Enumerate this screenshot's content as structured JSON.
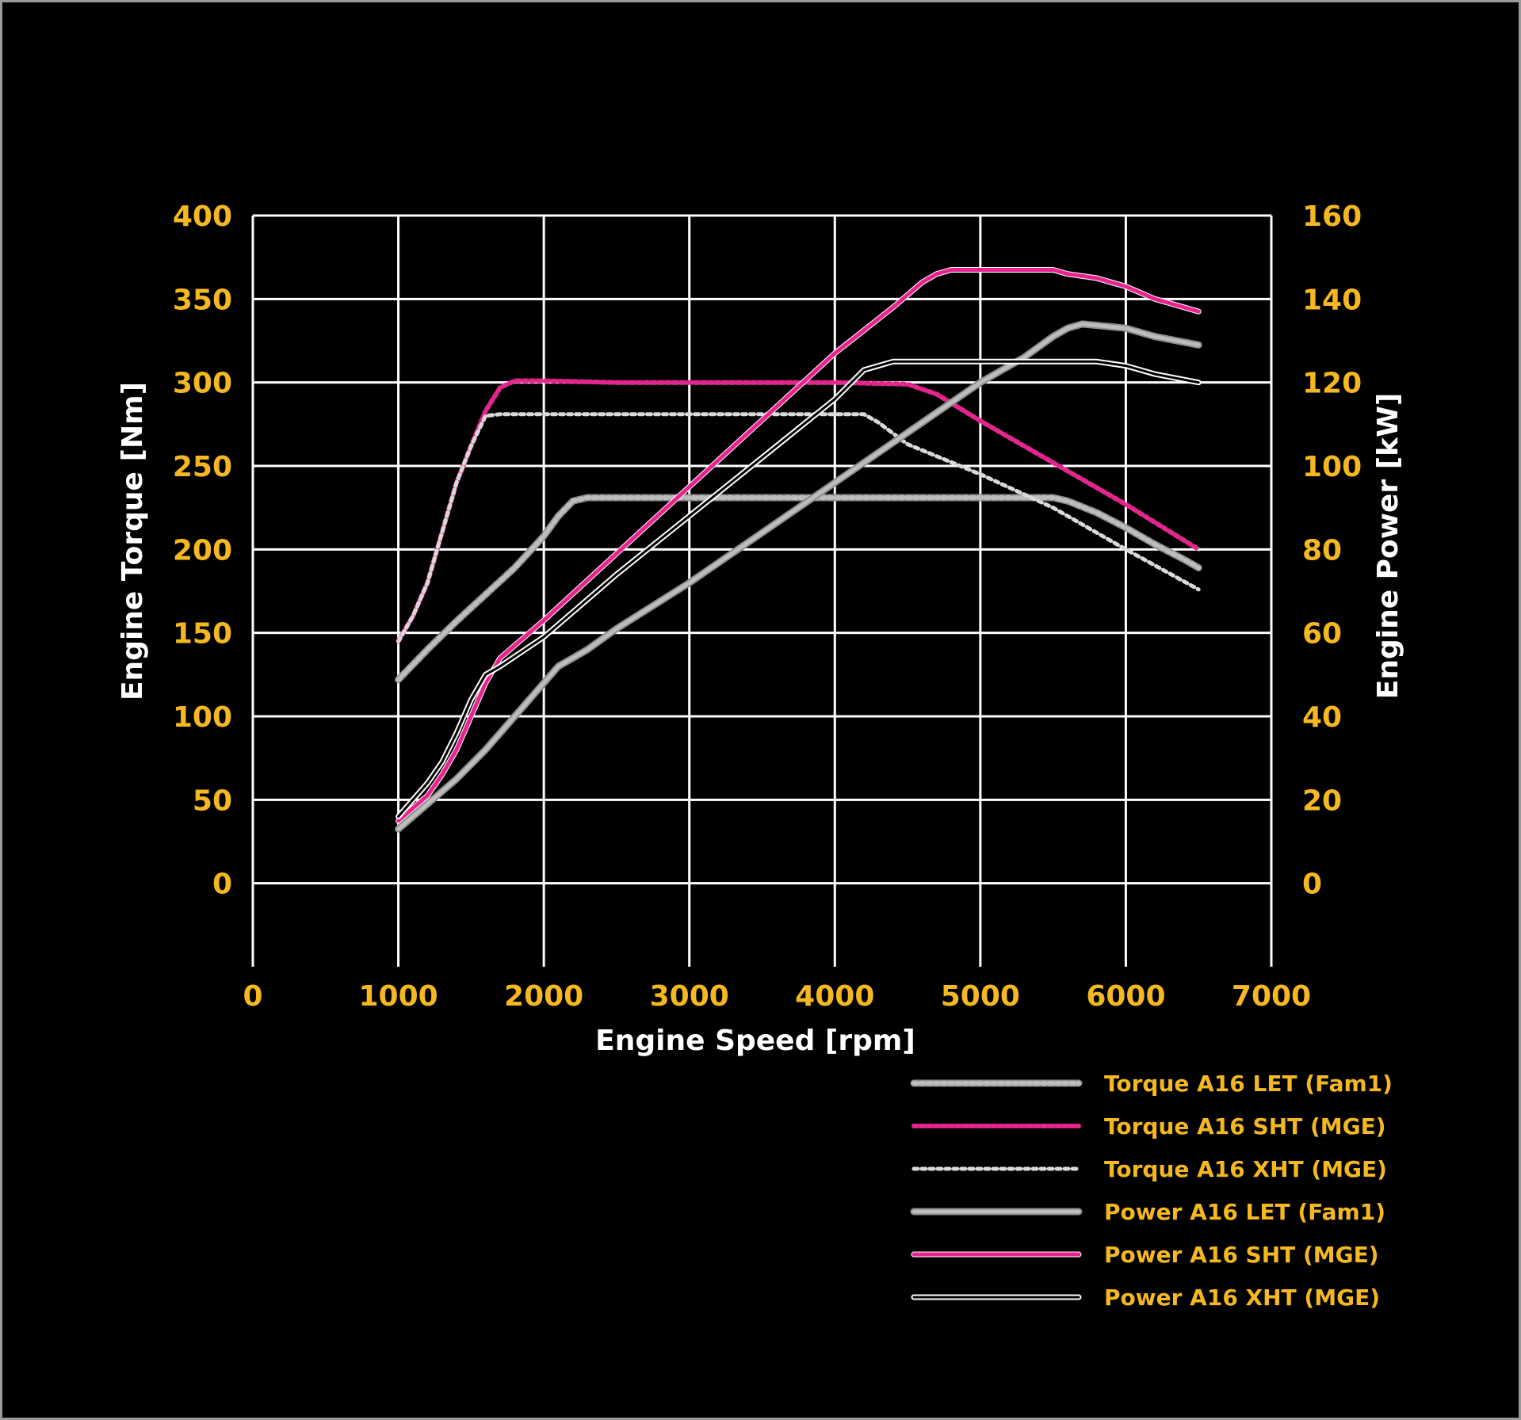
{
  "chart_data": {
    "type": "line",
    "title": "",
    "xlabel": "Engine Speed [rpm]",
    "ylabel_left": "Engine Torque [Nm]",
    "ylabel_right": "Engine Power [kW]",
    "xlim": [
      0,
      7000
    ],
    "ylim_left": [
      -50,
      400
    ],
    "ylim_right": [
      -20,
      160
    ],
    "x_ticks": [
      "0",
      "1000",
      "2000",
      "3000",
      "4000",
      "5000",
      "6000",
      "7000"
    ],
    "y_left_ticks": [
      "0",
      "50",
      "100",
      "150",
      "200",
      "250",
      "300",
      "350",
      "400"
    ],
    "y_right_ticks": [
      "0",
      "20",
      "40",
      "60",
      "80",
      "100",
      "120",
      "140",
      "160"
    ],
    "grid": true,
    "legend_position": "bottom-right",
    "series": [
      {
        "name": "Torque A16 LET (Fam1)",
        "axis": "left",
        "style": "dotted-thick",
        "color": "#bdbdbd",
        "x": [
          1000,
          1200,
          1400,
          1600,
          1800,
          2000,
          2100,
          2200,
          2300,
          2500,
          3000,
          3500,
          4000,
          4500,
          5000,
          5500,
          5600,
          5800,
          6000,
          6200,
          6400,
          6500
        ],
        "y": [
          122,
          140,
          157,
          173,
          189,
          208,
          220,
          229,
          231,
          231,
          231,
          231,
          231,
          231,
          231,
          231,
          229,
          222,
          213,
          203,
          194,
          189
        ]
      },
      {
        "name": "Torque A16 SHT (MGE)",
        "axis": "left",
        "style": "dotted",
        "color": "#e8238f",
        "x": [
          1000,
          1100,
          1200,
          1300,
          1400,
          1500,
          1600,
          1700,
          1800,
          2000,
          2500,
          3000,
          3500,
          4000,
          4500,
          4700,
          5000,
          5500,
          6000,
          6500
        ],
        "y": [
          145,
          160,
          180,
          210,
          240,
          262,
          283,
          297,
          301,
          301,
          300,
          300,
          300,
          300,
          299,
          293,
          277,
          252,
          227,
          200
        ]
      },
      {
        "name": "Torque A16 XHT (MGE)",
        "axis": "left",
        "style": "dotted-thin",
        "color": "#d9d9d9",
        "x": [
          1000,
          1100,
          1200,
          1300,
          1400,
          1500,
          1600,
          1700,
          2000,
          2500,
          3000,
          3500,
          4000,
          4200,
          4300,
          4500,
          5000,
          5500,
          6000,
          6500
        ],
        "y": [
          145,
          160,
          180,
          210,
          240,
          262,
          280,
          281,
          281,
          281,
          281,
          281,
          281,
          281,
          276,
          263,
          245,
          225,
          200,
          176
        ]
      },
      {
        "name": "Power A16 LET (Fam1)",
        "axis": "right",
        "style": "solid-thick",
        "color": "#bdbdbd",
        "x": [
          1000,
          1200,
          1400,
          1600,
          1800,
          2000,
          2100,
          2200,
          2300,
          2500,
          3000,
          3500,
          4000,
          4500,
          5000,
          5300,
          5500,
          5600,
          5700,
          6000,
          6200,
          6500
        ],
        "y": [
          13,
          19,
          25,
          32,
          40,
          48,
          52,
          54,
          56,
          61,
          72,
          84,
          96,
          108,
          120,
          126,
          131,
          133,
          134,
          133,
          131,
          129
        ]
      },
      {
        "name": "Power A16 SHT (MGE)",
        "axis": "right",
        "style": "solid",
        "color": "#e8238f",
        "x": [
          1000,
          1100,
          1200,
          1300,
          1400,
          1500,
          1600,
          1700,
          2000,
          2500,
          3000,
          3500,
          4000,
          4400,
          4600,
          4700,
          4800,
          5000,
          5500,
          5600,
          5800,
          6000,
          6200,
          6500
        ],
        "y": [
          15,
          18,
          21,
          26,
          32,
          40,
          48,
          54,
          63,
          79,
          95,
          111,
          127,
          138,
          144,
          146,
          147,
          147,
          147,
          146,
          145,
          143,
          140,
          137
        ]
      },
      {
        "name": "Power A16 XHT (MGE)",
        "axis": "right",
        "style": "solid-thin",
        "color": "#d9d9d9",
        "x": [
          1000,
          1100,
          1200,
          1300,
          1400,
          1500,
          1600,
          1700,
          2000,
          2500,
          3000,
          3500,
          4000,
          4200,
          4300,
          4400,
          4500,
          5000,
          5500,
          5800,
          6000,
          6200,
          6500
        ],
        "y": [
          16,
          20,
          24,
          29,
          36,
          44,
          50,
          52,
          59,
          74,
          88,
          102,
          116,
          123,
          124,
          125,
          125,
          125,
          125,
          125,
          124,
          122,
          120
        ]
      }
    ]
  }
}
